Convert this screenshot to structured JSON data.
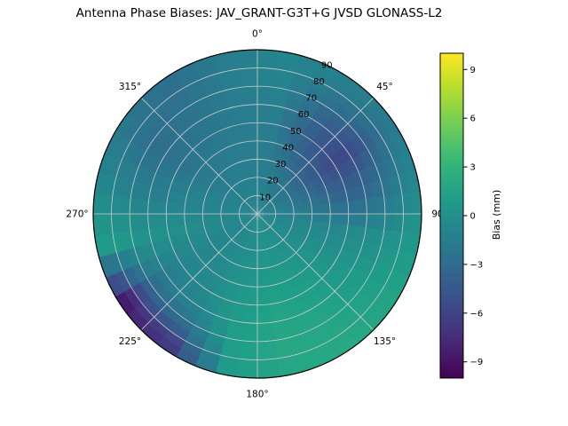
{
  "chart_data": {
    "type": "heatmap",
    "projection": "polar",
    "title": "Antenna Phase Biases: JAV_GRANT-G3T+G JVSD GLONASS-L2",
    "theta_tick_degs": [
      0,
      45,
      90,
      135,
      180,
      225,
      270,
      315
    ],
    "theta_tick_labels": [
      "0°",
      "45°",
      "90",
      "135°",
      "180°",
      "225°",
      "270°",
      "315°"
    ],
    "r_ticks": [
      10,
      20,
      30,
      40,
      50,
      60,
      70,
      80,
      90
    ],
    "r_max": 90,
    "r_label_angle_deg": 25,
    "grid": true,
    "colorbar": {
      "label": "Bias (mm)",
      "ticks": [
        -9,
        -6,
        -3,
        0,
        3,
        6,
        9
      ],
      "vmin": -10,
      "vmax": 10,
      "colormap": "viridis"
    },
    "radius_bins": [
      0,
      10,
      20,
      30,
      40,
      50,
      60,
      70,
      80,
      90
    ],
    "azimuth_bin_count": 16,
    "values": [
      [
        -1.0,
        -1.2,
        -1.3,
        -1.0,
        -0.8,
        -0.6,
        -0.5,
        -0.4,
        -0.4,
        -0.6,
        -0.8,
        -0.8,
        -0.9,
        -1.0,
        -1.0,
        -1.0
      ],
      [
        -1.2,
        -1.6,
        -2.0,
        -1.4,
        -0.8,
        -0.4,
        -0.2,
        0.0,
        -0.2,
        -0.6,
        -0.8,
        -0.7,
        -0.9,
        -1.2,
        -1.3,
        -1.2
      ],
      [
        -1.4,
        -2.4,
        -3.0,
        -2.0,
        -0.8,
        -0.2,
        0.2,
        0.4,
        0.0,
        -0.5,
        -0.8,
        -0.5,
        -0.9,
        -1.5,
        -1.6,
        -1.4
      ],
      [
        -1.5,
        -3.2,
        -4.2,
        -2.8,
        -0.8,
        0.0,
        0.6,
        0.8,
        0.3,
        -0.4,
        -0.8,
        -0.3,
        -1.0,
        -1.8,
        -1.8,
        -1.5
      ],
      [
        -1.5,
        -3.8,
        -5.2,
        -3.4,
        -0.7,
        0.3,
        1.0,
        1.2,
        0.6,
        -0.4,
        -0.9,
        -0.1,
        -1.2,
        -2.2,
        -2.0,
        -1.6
      ],
      [
        -1.4,
        -4.0,
        -5.8,
        -3.6,
        -0.5,
        0.6,
        1.3,
        1.5,
        0.8,
        -0.6,
        -1.2,
        0.1,
        -1.4,
        -2.6,
        -2.2,
        -1.6
      ],
      [
        -1.2,
        -3.4,
        -5.0,
        -3.0,
        -0.2,
        0.9,
        1.6,
        1.8,
        1.0,
        -1.4,
        -2.2,
        0.3,
        -1.4,
        -2.8,
        -2.4,
        -1.5
      ],
      [
        -1.0,
        -2.4,
        -3.4,
        -2.0,
        0.2,
        1.2,
        1.8,
        1.9,
        1.0,
        -3.4,
        -4.4,
        0.6,
        -1.2,
        -2.6,
        -2.6,
        -1.4
      ],
      [
        -0.8,
        -1.4,
        -1.8,
        -0.8,
        0.6,
        1.6,
        2.0,
        1.8,
        0.8,
        -6.5,
        -8.5,
        0.9,
        -0.8,
        -2.0,
        -2.8,
        -1.6
      ]
    ]
  }
}
